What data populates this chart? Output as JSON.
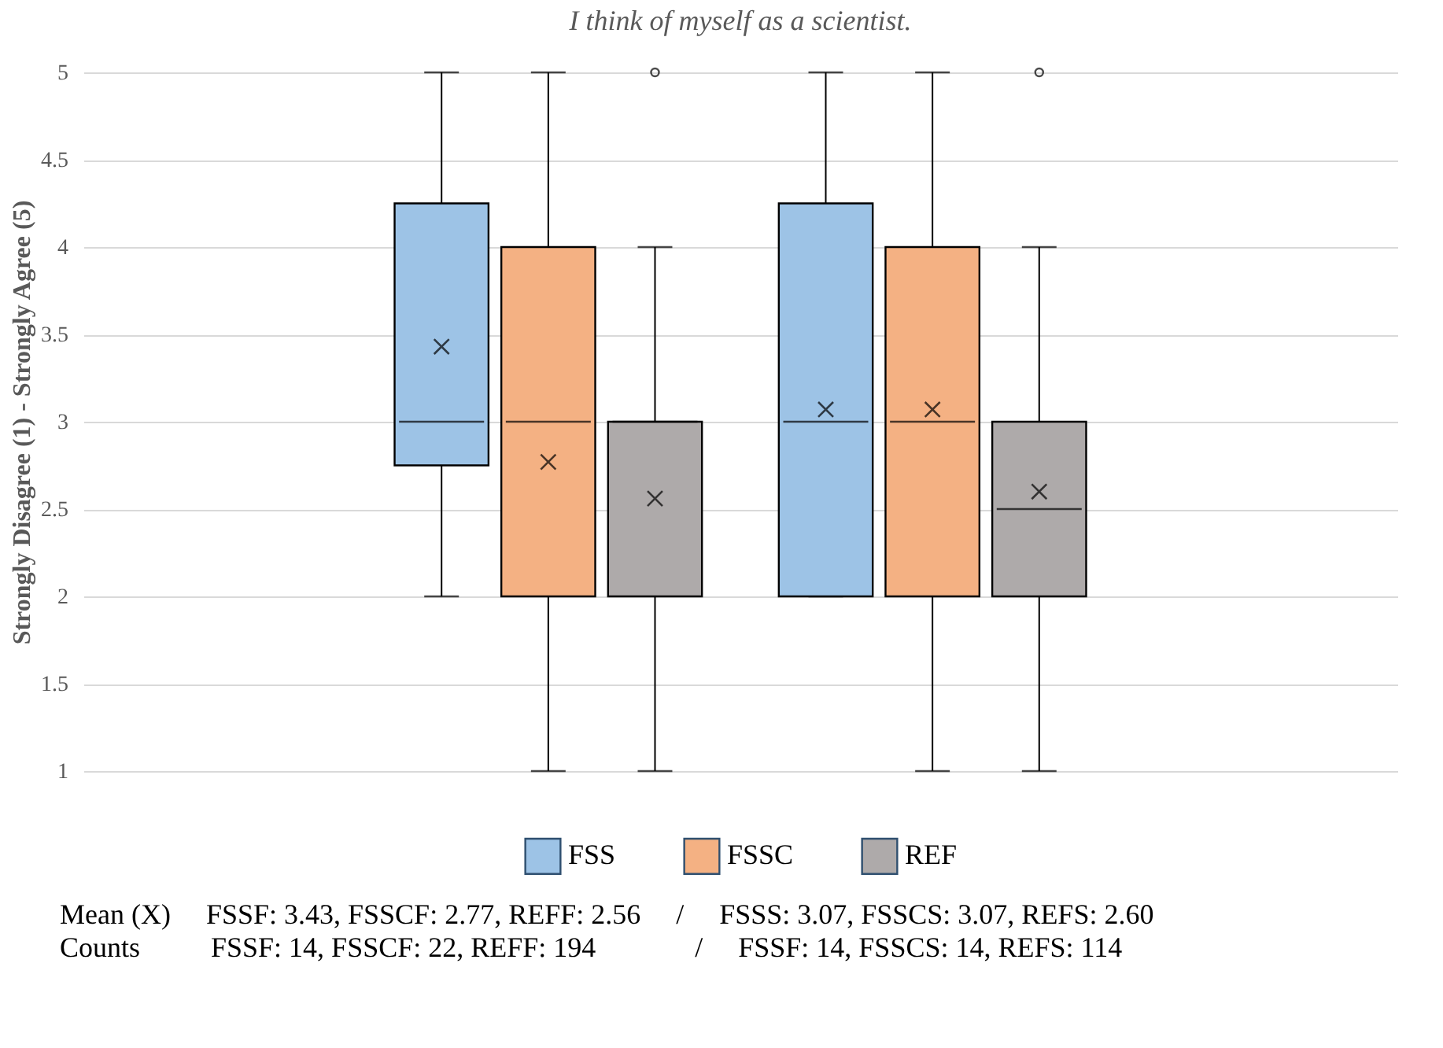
{
  "chart_data": {
    "type": "box",
    "title": "I think of myself as a scientist.",
    "ylabel": "Strongly Disagree (1) - Strongly Agree (5)",
    "categories": [
      null,
      null
    ],
    "series": [
      {
        "name": "FSS",
        "color": "#9dc3e6",
        "boxes": [
          {
            "low": 2,
            "q1": 2.75,
            "median": 3,
            "q3": 4.25,
            "high": 5,
            "mean": 3.43
          },
          {
            "low": 2,
            "q1": 2,
            "median": 3,
            "q3": 4.25,
            "high": 5,
            "mean": 3.07
          }
        ]
      },
      {
        "name": "FSSC",
        "color": "#f4b183",
        "boxes": [
          {
            "low": 1,
            "q1": 2,
            "median": 3,
            "q3": 4,
            "high": 5,
            "mean": 2.77
          },
          {
            "low": 1,
            "q1": 2,
            "median": 3,
            "q3": 4,
            "high": 5,
            "mean": 3.07
          }
        ]
      },
      {
        "name": "REF",
        "color": "#aeaaaa",
        "boxes": [
          {
            "low": 1,
            "q1": 2,
            "median": 3,
            "q3": 3,
            "high": 4,
            "mean": 2.56,
            "outliers": [
              5
            ]
          },
          {
            "low": 1,
            "q1": 2,
            "median": 2.5,
            "q3": 3,
            "high": 4,
            "mean": 2.6,
            "outliers": [
              5
            ]
          }
        ]
      }
    ],
    "ylim": [
      1,
      5
    ],
    "yticks": [
      1,
      1.5,
      2,
      2.5,
      3,
      3.5,
      4,
      4.5,
      5
    ],
    "grid": "y",
    "legend": "bottom",
    "annotations": [
      "Mean (X)     FSSF: 3.43, FSSCF: 2.77, REFF: 2.56     /     FSSS: 3.07, FSSCS: 3.07, REFS: 2.60",
      "Counts          FSSF: 14, FSSCF: 22, REFF: 194              /     FSSF: 14, FSSCS: 14, REFS: 114"
    ]
  }
}
